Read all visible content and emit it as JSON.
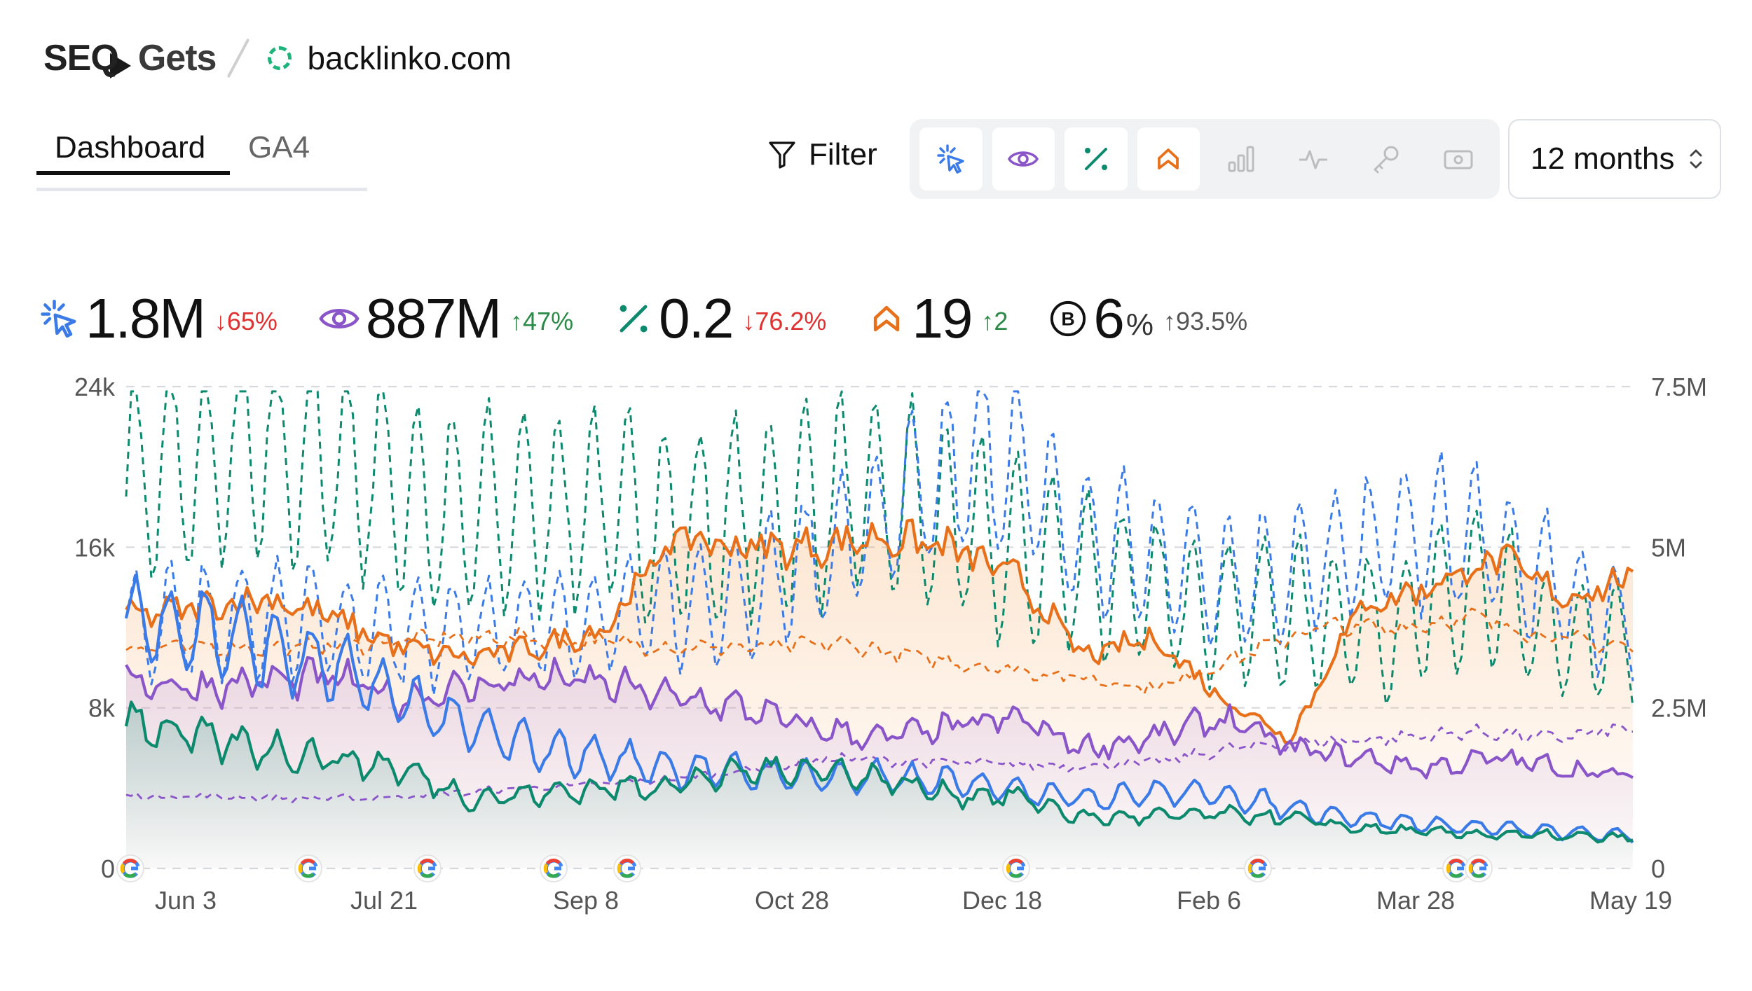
{
  "header": {
    "logo_left": "SEQ",
    "logo_right": "Gets",
    "site": "backlinko.com"
  },
  "tabs": [
    {
      "label": "Dashboard",
      "active": true
    },
    {
      "label": "GA4",
      "active": false
    }
  ],
  "toolbar": {
    "filter_label": "Filter",
    "metric_icons": [
      {
        "name": "clicks-icon",
        "on": true,
        "color": "#3b7be8"
      },
      {
        "name": "impressions-icon",
        "on": true,
        "color": "#8a55c9"
      },
      {
        "name": "ctr-icon",
        "on": true,
        "color": "#0d8a6e"
      },
      {
        "name": "position-icon",
        "on": true,
        "color": "#e8701a"
      },
      {
        "name": "bar-chart-icon",
        "on": false,
        "color": "#bdbdbd"
      },
      {
        "name": "pulse-icon",
        "on": false,
        "color": "#bdbdbd"
      },
      {
        "name": "key-icon",
        "on": false,
        "color": "#bdbdbd"
      },
      {
        "name": "money-icon",
        "on": false,
        "color": "#bdbdbd"
      }
    ],
    "range_label": "12 months"
  },
  "stats": {
    "clicks": {
      "value": "1.8M",
      "change": "↓65%"
    },
    "impressions": {
      "value": "887M",
      "change": "↑47%"
    },
    "ctr": {
      "value": "0.2",
      "change": "↓76.2%"
    },
    "position": {
      "value": "19",
      "change": "↑2"
    },
    "brand": {
      "value": "6",
      "unit": "%",
      "change": "↑93.5%"
    }
  },
  "colors": {
    "clicks": "#3b7be8",
    "impressions": "#8a55c9",
    "ctr": "#0d8a6e",
    "position": "#e8701a"
  },
  "chart_data": {
    "type": "line",
    "x_ticks": [
      "Jun 3",
      "Jul 21",
      "Sep 8",
      "Oct 28",
      "Dec 18",
      "Feb 6",
      "Mar 28",
      "May 19"
    ],
    "y_left_ticks": [
      "0",
      "8k",
      "16k",
      "24k"
    ],
    "y_right_ticks": [
      "0",
      "2.5M",
      "5M",
      "7.5M"
    ],
    "y_left_range": [
      0,
      24000
    ],
    "y_right_range": [
      0,
      7500000
    ],
    "grid": "dashed-horizontal",
    "google_update_markers": 10,
    "series": [
      {
        "key": "ctr",
        "style": "dashed",
        "color": "#0d8a6e",
        "values": [
          19500,
          20500,
          21000,
          20000,
          17500,
          18000,
          18000,
          17000,
          17500,
          18500,
          18000,
          16000,
          15000,
          13500,
          13000,
          12500,
          12000,
          14000,
          11500,
          11000
        ]
      },
      {
        "key": "clicks-dashed",
        "style": "dashed",
        "color": "#3b7be8",
        "values": [
          12000,
          12500,
          12500,
          12000,
          11500,
          12000,
          12500,
          13000,
          14000,
          16000,
          18500,
          21000,
          16500,
          15500,
          14500,
          15000,
          16500,
          16500,
          14000,
          12000
        ]
      },
      {
        "key": "position-dashed",
        "style": "dashed",
        "color": "#e8701a",
        "values": [
          11000,
          11000,
          11000,
          11200,
          11500,
          11500,
          11300,
          11000,
          11000,
          11200,
          10500,
          10000,
          9500,
          9000,
          10500,
          12000,
          12000,
          12500,
          11500,
          11000
        ]
      },
      {
        "key": "impressions-dashed",
        "style": "dashed",
        "color": "#8a55c9",
        "values": [
          3600,
          3600,
          3500,
          3500,
          3700,
          4000,
          4200,
          4500,
          5000,
          5500,
          5300,
          5200,
          5100,
          5300,
          6000,
          6300,
          6500,
          6800,
          6500,
          7000
        ]
      },
      {
        "key": "position",
        "style": "solid",
        "color": "#e8701a",
        "values": [
          12500,
          13000,
          13500,
          12500,
          11000,
          10500,
          11000,
          12000,
          16500,
          16000,
          16000,
          16500,
          16000,
          14500,
          10500,
          11500,
          8500,
          6500,
          13000,
          14000,
          15500,
          13500,
          14500
        ]
      },
      {
        "key": "impressions",
        "style": "solid",
        "color": "#8a55c9",
        "values": [
          9500,
          9000,
          9300,
          9500,
          8500,
          9000,
          9500,
          9200,
          8500,
          8000,
          7000,
          6500,
          7000,
          7500,
          6000,
          6500,
          7500,
          6000,
          5500,
          5000,
          5500,
          5000,
          4500
        ]
      },
      {
        "key": "clicks",
        "style": "solid",
        "color": "#3b7be8",
        "values": [
          12500,
          12000,
          11000,
          10000,
          8500,
          7000,
          6000,
          5500,
          5000,
          4800,
          4600,
          4500,
          4300,
          4000,
          3500,
          3800,
          3700,
          3000,
          2500,
          2200,
          2000,
          1800,
          1600
        ]
      },
      {
        "key": "ctr-solid",
        "style": "solid",
        "color": "#0d8a6e",
        "values": [
          7500,
          6500,
          6000,
          5500,
          5000,
          3500,
          3700,
          4000,
          4200,
          4800,
          5000,
          4500,
          3700,
          3600,
          2500,
          2600,
          2700,
          2500,
          2000,
          1800,
          1700,
          1600,
          1500
        ]
      }
    ]
  }
}
